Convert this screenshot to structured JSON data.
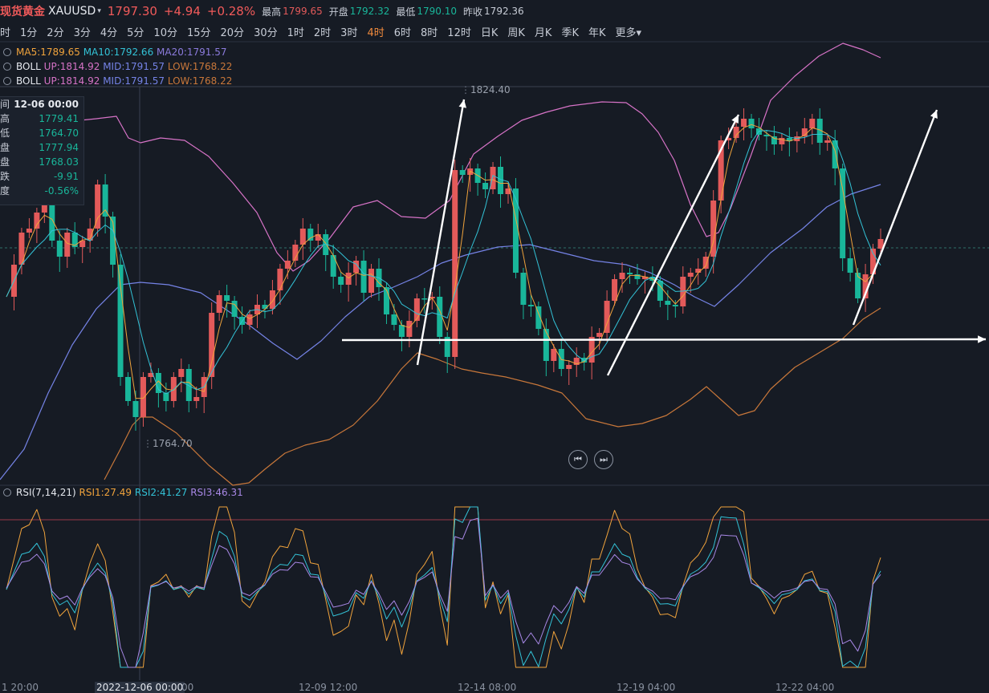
{
  "header": {
    "name": "现货黄金",
    "symbol": "XAUUSD",
    "price": "1797.30",
    "change": "+4.94",
    "change_pct": "+0.28%",
    "high_label": "最高",
    "high": "1799.65",
    "open_label": "开盘",
    "open": "1792.32",
    "low_label": "最低",
    "low": "1790.10",
    "prev_label": "昨收",
    "prev": "1792.36"
  },
  "periods": {
    "items": [
      "时",
      "1分",
      "2分",
      "3分",
      "4分",
      "5分",
      "10分",
      "15分",
      "20分",
      "30分",
      "1时",
      "2时",
      "3时",
      "4时",
      "6时",
      "8时",
      "12时",
      "日K",
      "周K",
      "月K",
      "季K",
      "年K",
      "更多"
    ],
    "active": "4时"
  },
  "legend": {
    "ma": {
      "ma5": "MA5:1789.65",
      "ma10": "MA10:1792.66",
      "ma20": "MA20:1791.57"
    },
    "boll1": {
      "name": "BOLL",
      "up": "UP:1814.92",
      "mid": "MID:1791.57",
      "low": "LOW:1768.22"
    },
    "boll2": {
      "name": "BOLL",
      "up": "UP:1814.92",
      "mid": "MID:1791.57",
      "low": "LOW:1768.22"
    },
    "rsi": {
      "name": "RSI(7,14,21)",
      "rsi1": "RSI1:27.49",
      "rsi2": "RSI2:41.27",
      "rsi3": "RSI3:46.31"
    }
  },
  "info_box": {
    "rows": [
      {
        "k": "间",
        "v": "12-06 00:00"
      },
      {
        "k": "高",
        "v": "1779.41"
      },
      {
        "k": "低",
        "v": "1764.70"
      },
      {
        "k": "盘",
        "v": "1777.94"
      },
      {
        "k": "盘",
        "v": "1768.03"
      },
      {
        "k": "跌",
        "v": "-9.91"
      },
      {
        "k": "度",
        "v": "-0.56%"
      }
    ]
  },
  "annotations": {
    "max_label": "1824.40",
    "min_label": "1764.70"
  },
  "xaxis": {
    "labels": [
      "1 20:00",
      "2022-12-06 00:00",
      "00",
      "12-09 12:00",
      "12-14 08:00",
      "12-19 04:00",
      "12-22 04:00"
    ]
  },
  "colors": {
    "bg": "#161b24",
    "up": "#e35a5a",
    "down": "#19b69a",
    "ma5": "#f0a33c",
    "ma10": "#33c2d6",
    "ma20": "#8b7bdc",
    "boll_up": "#d773c7",
    "boll_mid": "#7583e6",
    "boll_low": "#c8773a",
    "rsi1": "#f0a33c",
    "rsi2": "#33c2d6",
    "rsi3": "#a888e6"
  },
  "icons": [
    "settings-gear-icon",
    "skip-back-icon",
    "skip-forward-icon"
  ]
}
